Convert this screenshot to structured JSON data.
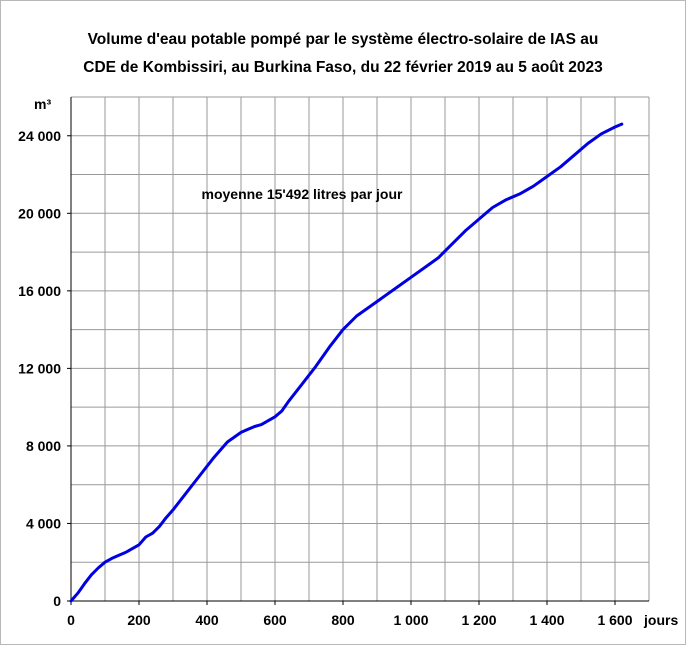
{
  "chart_data": {
    "type": "line",
    "title_line1": "Volume d'eau potable pompé par le système électro-solaire de IAS au",
    "title_line2": "CDE de Kombissiri, au Burkina Faso, du 22 février 2019 au 5 août 2023",
    "ylabel": "m³",
    "xlabel": "jours",
    "annotation": "moyenne 15'492 litres par jour",
    "xlim": [
      0,
      1700
    ],
    "ylim": [
      0,
      26000
    ],
    "x_ticks": [
      0,
      200,
      400,
      600,
      800,
      1000,
      1200,
      1400,
      1600
    ],
    "x_tick_labels": [
      "0",
      "200",
      "400",
      "600",
      "800",
      "1 000",
      "1 200",
      "1 400",
      "1 600"
    ],
    "y_ticks": [
      0,
      4000,
      8000,
      12000,
      16000,
      20000,
      24000
    ],
    "y_tick_labels": [
      "0",
      "4 000",
      "8 000",
      "12 000",
      "16 000",
      "20 000",
      "24 000"
    ],
    "x_grid_step": 100,
    "y_grid_step": 2000,
    "grid": true,
    "line_color": "#0000e0",
    "series": [
      {
        "x": [
          0,
          20,
          40,
          60,
          80,
          100,
          120,
          140,
          160,
          180,
          200,
          220,
          240,
          260,
          280,
          300,
          340,
          380,
          420,
          460,
          500,
          520,
          540,
          560,
          580,
          600,
          620,
          640,
          680,
          720,
          760,
          800,
          840,
          880,
          920,
          960,
          1000,
          1040,
          1080,
          1120,
          1160,
          1200,
          1240,
          1280,
          1320,
          1360,
          1400,
          1440,
          1480,
          1520,
          1560,
          1600,
          1620
        ],
        "y": [
          0,
          400,
          900,
          1350,
          1700,
          2000,
          2200,
          2350,
          2500,
          2700,
          2900,
          3300,
          3500,
          3850,
          4300,
          4700,
          5600,
          6500,
          7400,
          8200,
          8700,
          8850,
          9000,
          9100,
          9300,
          9500,
          9800,
          10300,
          11200,
          12100,
          13100,
          14000,
          14700,
          15200,
          15700,
          16200,
          16700,
          17200,
          17700,
          18400,
          19100,
          19700,
          20300,
          20700,
          21000,
          21400,
          21900,
          22400,
          23000,
          23600,
          24100,
          24450,
          24600
        ]
      }
    ]
  }
}
